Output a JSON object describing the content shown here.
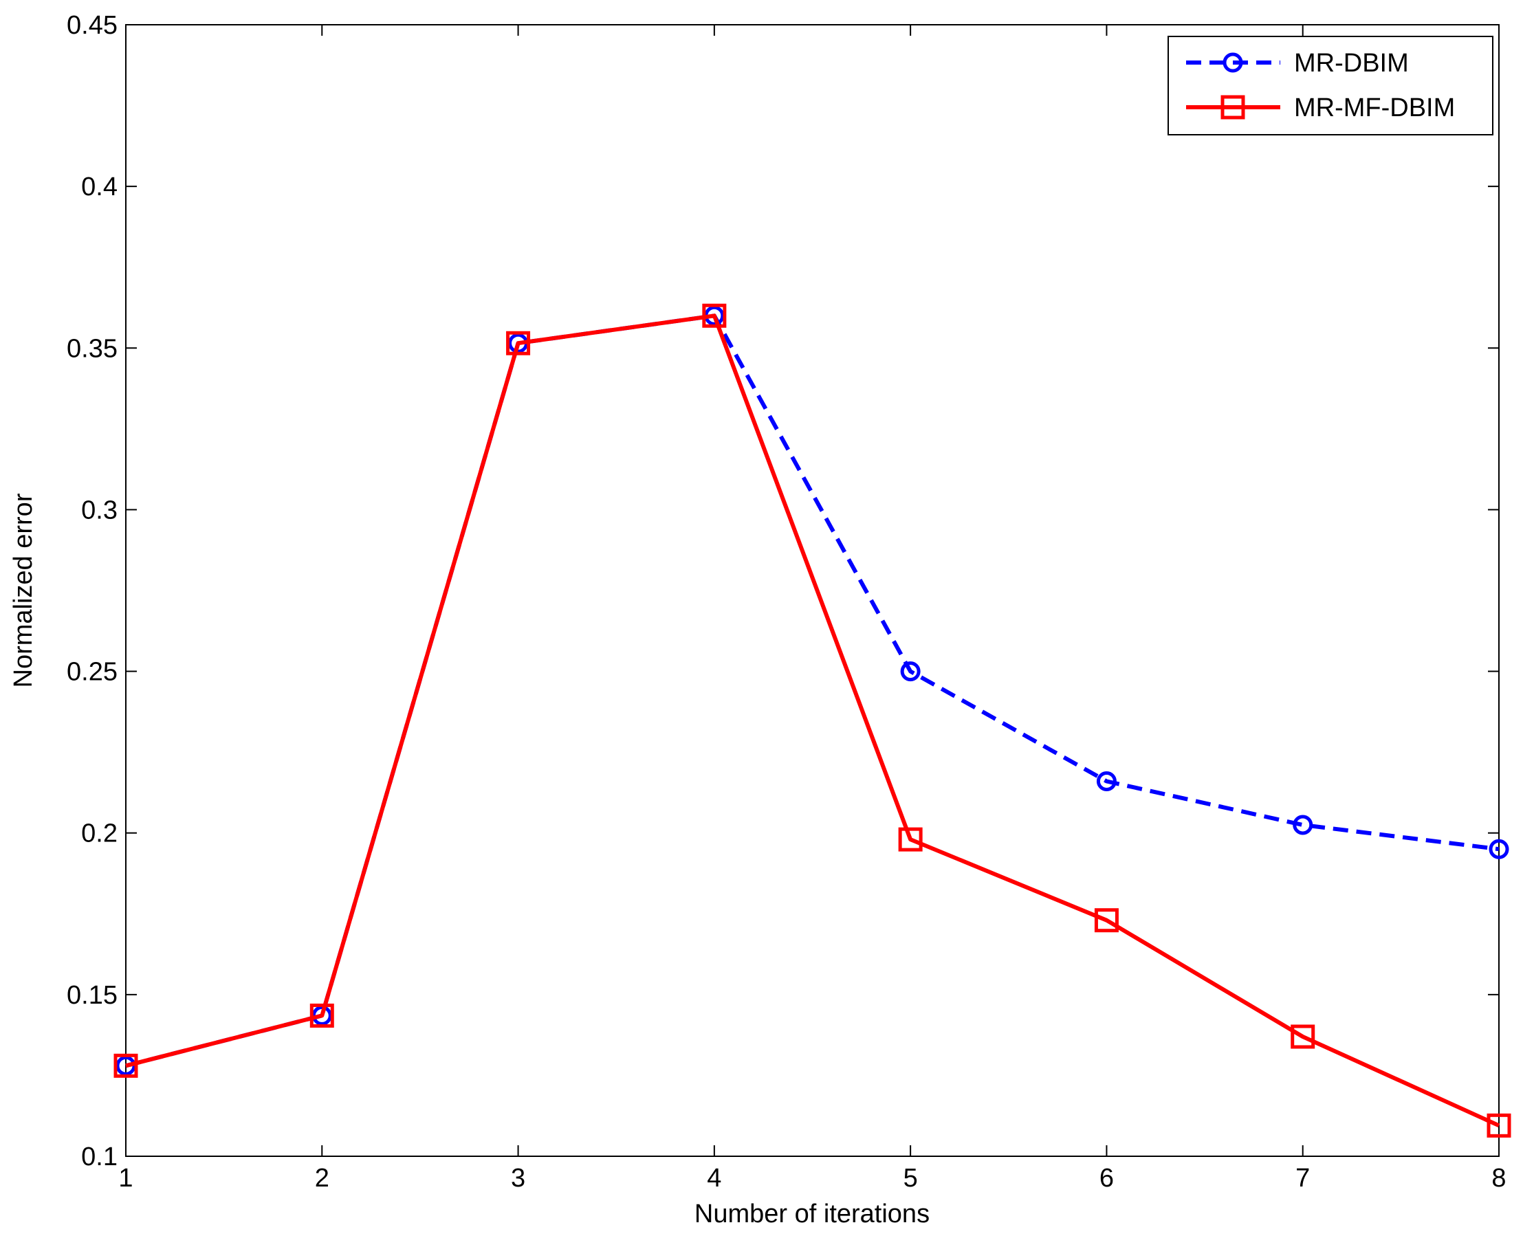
{
  "chart_data": {
    "type": "line",
    "title": "",
    "xlabel": "Number of iterations",
    "ylabel": "Normalized error",
    "x": [
      1,
      2,
      3,
      4,
      5,
      6,
      7,
      8
    ],
    "xlim": [
      1,
      8
    ],
    "ylim": [
      0.1,
      0.45
    ],
    "x_ticks": [
      1,
      2,
      3,
      4,
      5,
      6,
      7,
      8
    ],
    "y_ticks": [
      0.1,
      0.15,
      0.2,
      0.25,
      0.3,
      0.35,
      0.4,
      0.45
    ],
    "x_tick_labels": [
      "1",
      "2",
      "3",
      "4",
      "5",
      "6",
      "7",
      "8"
    ],
    "y_tick_labels": [
      "0.1",
      "0.15",
      "0.2",
      "0.25",
      "0.3",
      "0.35",
      "0.4",
      "0.45"
    ],
    "grid": false,
    "legend_position": "top-right",
    "series": [
      {
        "name": "MR-DBIM",
        "values": [
          0.128,
          0.1435,
          0.3515,
          0.36,
          0.25,
          0.216,
          0.2025,
          0.195
        ],
        "color": "#0000ff",
        "line_style": "dashed",
        "marker": "circle"
      },
      {
        "name": "MR-MF-DBIM",
        "values": [
          0.128,
          0.1435,
          0.3515,
          0.36,
          0.198,
          0.173,
          0.137,
          0.1095
        ],
        "color": "#ff0000",
        "line_style": "solid",
        "marker": "square"
      }
    ]
  }
}
